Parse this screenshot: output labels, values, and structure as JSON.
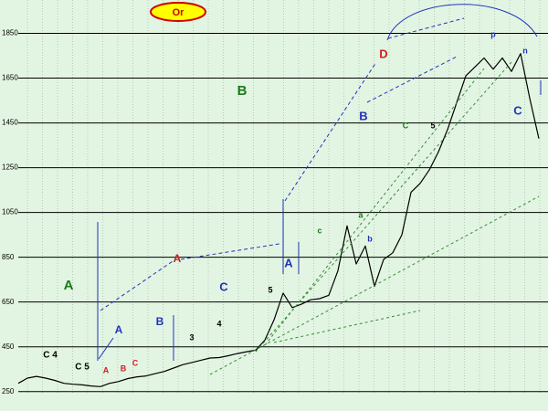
{
  "chart_data": {
    "type": "line",
    "title": "Or",
    "values": [
      287,
      310,
      318,
      310,
      300,
      287,
      283,
      280,
      275,
      272,
      287,
      295,
      308,
      316,
      320,
      330,
      340,
      355,
      370,
      380,
      390,
      400,
      402,
      410,
      420,
      428,
      435,
      480,
      570,
      690,
      625,
      640,
      660,
      665,
      680,
      790,
      990,
      820,
      900,
      720,
      840,
      870,
      950,
      1140,
      1180,
      1240,
      1320,
      1420,
      1540,
      1660,
      1700,
      1740,
      1690,
      1740,
      1680,
      1760,
      1560,
      1380
    ],
    "color": "#000000",
    "background": "#e2f5e2",
    "ylim": [
      200,
      1950
    ],
    "yticks": [
      250,
      450,
      650,
      850,
      1050,
      1250,
      1450,
      1650,
      1850
    ],
    "grid": true,
    "annotations": [
      {
        "text": "A",
        "color": "#1a7a1a"
      },
      {
        "text": "B",
        "color": "#1a7a1a"
      },
      {
        "text": "C",
        "color": "#2233bb"
      },
      {
        "text": "A",
        "color": "#2233bb"
      },
      {
        "text": "B",
        "color": "#2233bb"
      },
      {
        "text": "A",
        "color": "#2233bb"
      },
      {
        "text": "B",
        "color": "#2233bb"
      },
      {
        "text": "C",
        "color": "#2233bb"
      },
      {
        "text": "D",
        "color": "#cc2222"
      },
      {
        "text": "C 4",
        "color": "#000000"
      },
      {
        "text": "C 5",
        "color": "#000000"
      },
      {
        "text": "A",
        "color": "#cc2222"
      },
      {
        "text": "B",
        "color": "#cc2222"
      },
      {
        "text": "C",
        "color": "#cc2222"
      },
      {
        "text": "A",
        "color": "#cc2222"
      },
      {
        "text": "5",
        "color": "#000000"
      },
      {
        "text": "a",
        "color": "#1a7a1a"
      },
      {
        "text": "b",
        "color": "#2233bb"
      },
      {
        "text": "c",
        "color": "#1a7a1a"
      },
      {
        "text": "C",
        "color": "#1a7a1a"
      },
      {
        "text": "5",
        "color": "#000000"
      },
      {
        "text": "p",
        "color": "#2233bb"
      },
      {
        "text": "n",
        "color": "#2233bb"
      },
      {
        "text": "4",
        "color": "#000000"
      },
      {
        "text": "3",
        "color": "#000000"
      }
    ]
  }
}
